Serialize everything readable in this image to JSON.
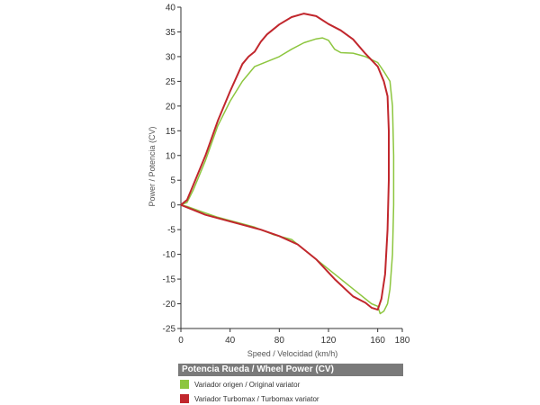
{
  "chart_data": {
    "type": "line",
    "title": "",
    "xlabel": "Speed / Velocidad (km/h)",
    "ylabel": "Power / Potencia (CV)",
    "xlim": [
      0,
      180
    ],
    "ylim": [
      -25,
      40
    ],
    "xticks": [
      0,
      40,
      80,
      120,
      160,
      180
    ],
    "yticks": [
      40,
      35,
      30,
      25,
      20,
      15,
      10,
      5,
      0,
      -5,
      -10,
      -15,
      -20,
      -25
    ],
    "grid": false,
    "legend": {
      "title": "Potencia Rueda / Wheel Power (CV)",
      "placement": "bottom"
    },
    "series": [
      {
        "name": "Variador origen / Original variator",
        "color": "#8dc63f",
        "points": [
          [
            0,
            0
          ],
          [
            5,
            0.5
          ],
          [
            10,
            3
          ],
          [
            20,
            9
          ],
          [
            30,
            16
          ],
          [
            40,
            21
          ],
          [
            50,
            25
          ],
          [
            60,
            28
          ],
          [
            70,
            29
          ],
          [
            80,
            30
          ],
          [
            90,
            31.5
          ],
          [
            100,
            32.8
          ],
          [
            110,
            33.6
          ],
          [
            115,
            33.8
          ],
          [
            120,
            33.3
          ],
          [
            125,
            31.5
          ],
          [
            130,
            30.8
          ],
          [
            140,
            30.7
          ],
          [
            150,
            30
          ],
          [
            160,
            28.8
          ],
          [
            165,
            27
          ],
          [
            170,
            25
          ],
          [
            172,
            20
          ],
          [
            173,
            10
          ],
          [
            173,
            0
          ],
          [
            172,
            -10
          ],
          [
            170,
            -17
          ],
          [
            168,
            -20
          ],
          [
            165,
            -21.5
          ],
          [
            162,
            -22
          ],
          [
            160,
            -20.5
          ],
          [
            155,
            -20
          ],
          [
            145,
            -18
          ],
          [
            130,
            -15
          ],
          [
            110,
            -11
          ],
          [
            90,
            -7
          ],
          [
            75,
            -6
          ],
          [
            60,
            -4.5
          ],
          [
            45,
            -3.5
          ],
          [
            30,
            -2.5
          ],
          [
            15,
            -1.2
          ],
          [
            5,
            -0.3
          ],
          [
            0,
            0
          ]
        ]
      },
      {
        "name": "Variador Turbomax / Turbomax variator",
        "color": "#c1272d",
        "points": [
          [
            0,
            0
          ],
          [
            5,
            1
          ],
          [
            10,
            4
          ],
          [
            20,
            10
          ],
          [
            30,
            17
          ],
          [
            40,
            23
          ],
          [
            50,
            28.5
          ],
          [
            55,
            30
          ],
          [
            60,
            31
          ],
          [
            65,
            33
          ],
          [
            70,
            34.5
          ],
          [
            80,
            36.5
          ],
          [
            90,
            38
          ],
          [
            100,
            38.7
          ],
          [
            110,
            38.2
          ],
          [
            120,
            36.6
          ],
          [
            130,
            35.3
          ],
          [
            140,
            33.5
          ],
          [
            150,
            30.6
          ],
          [
            160,
            28
          ],
          [
            165,
            25
          ],
          [
            168,
            22
          ],
          [
            169,
            15
          ],
          [
            169,
            5
          ],
          [
            168,
            -5
          ],
          [
            166,
            -14
          ],
          [
            163,
            -19
          ],
          [
            160,
            -21.2
          ],
          [
            155,
            -20.8
          ],
          [
            150,
            -19.8
          ],
          [
            140,
            -18.5
          ],
          [
            125,
            -15
          ],
          [
            110,
            -11
          ],
          [
            95,
            -8
          ],
          [
            80,
            -6.3
          ],
          [
            65,
            -5
          ],
          [
            50,
            -4
          ],
          [
            35,
            -3
          ],
          [
            20,
            -2
          ],
          [
            10,
            -1
          ],
          [
            0,
            0
          ]
        ]
      }
    ]
  }
}
